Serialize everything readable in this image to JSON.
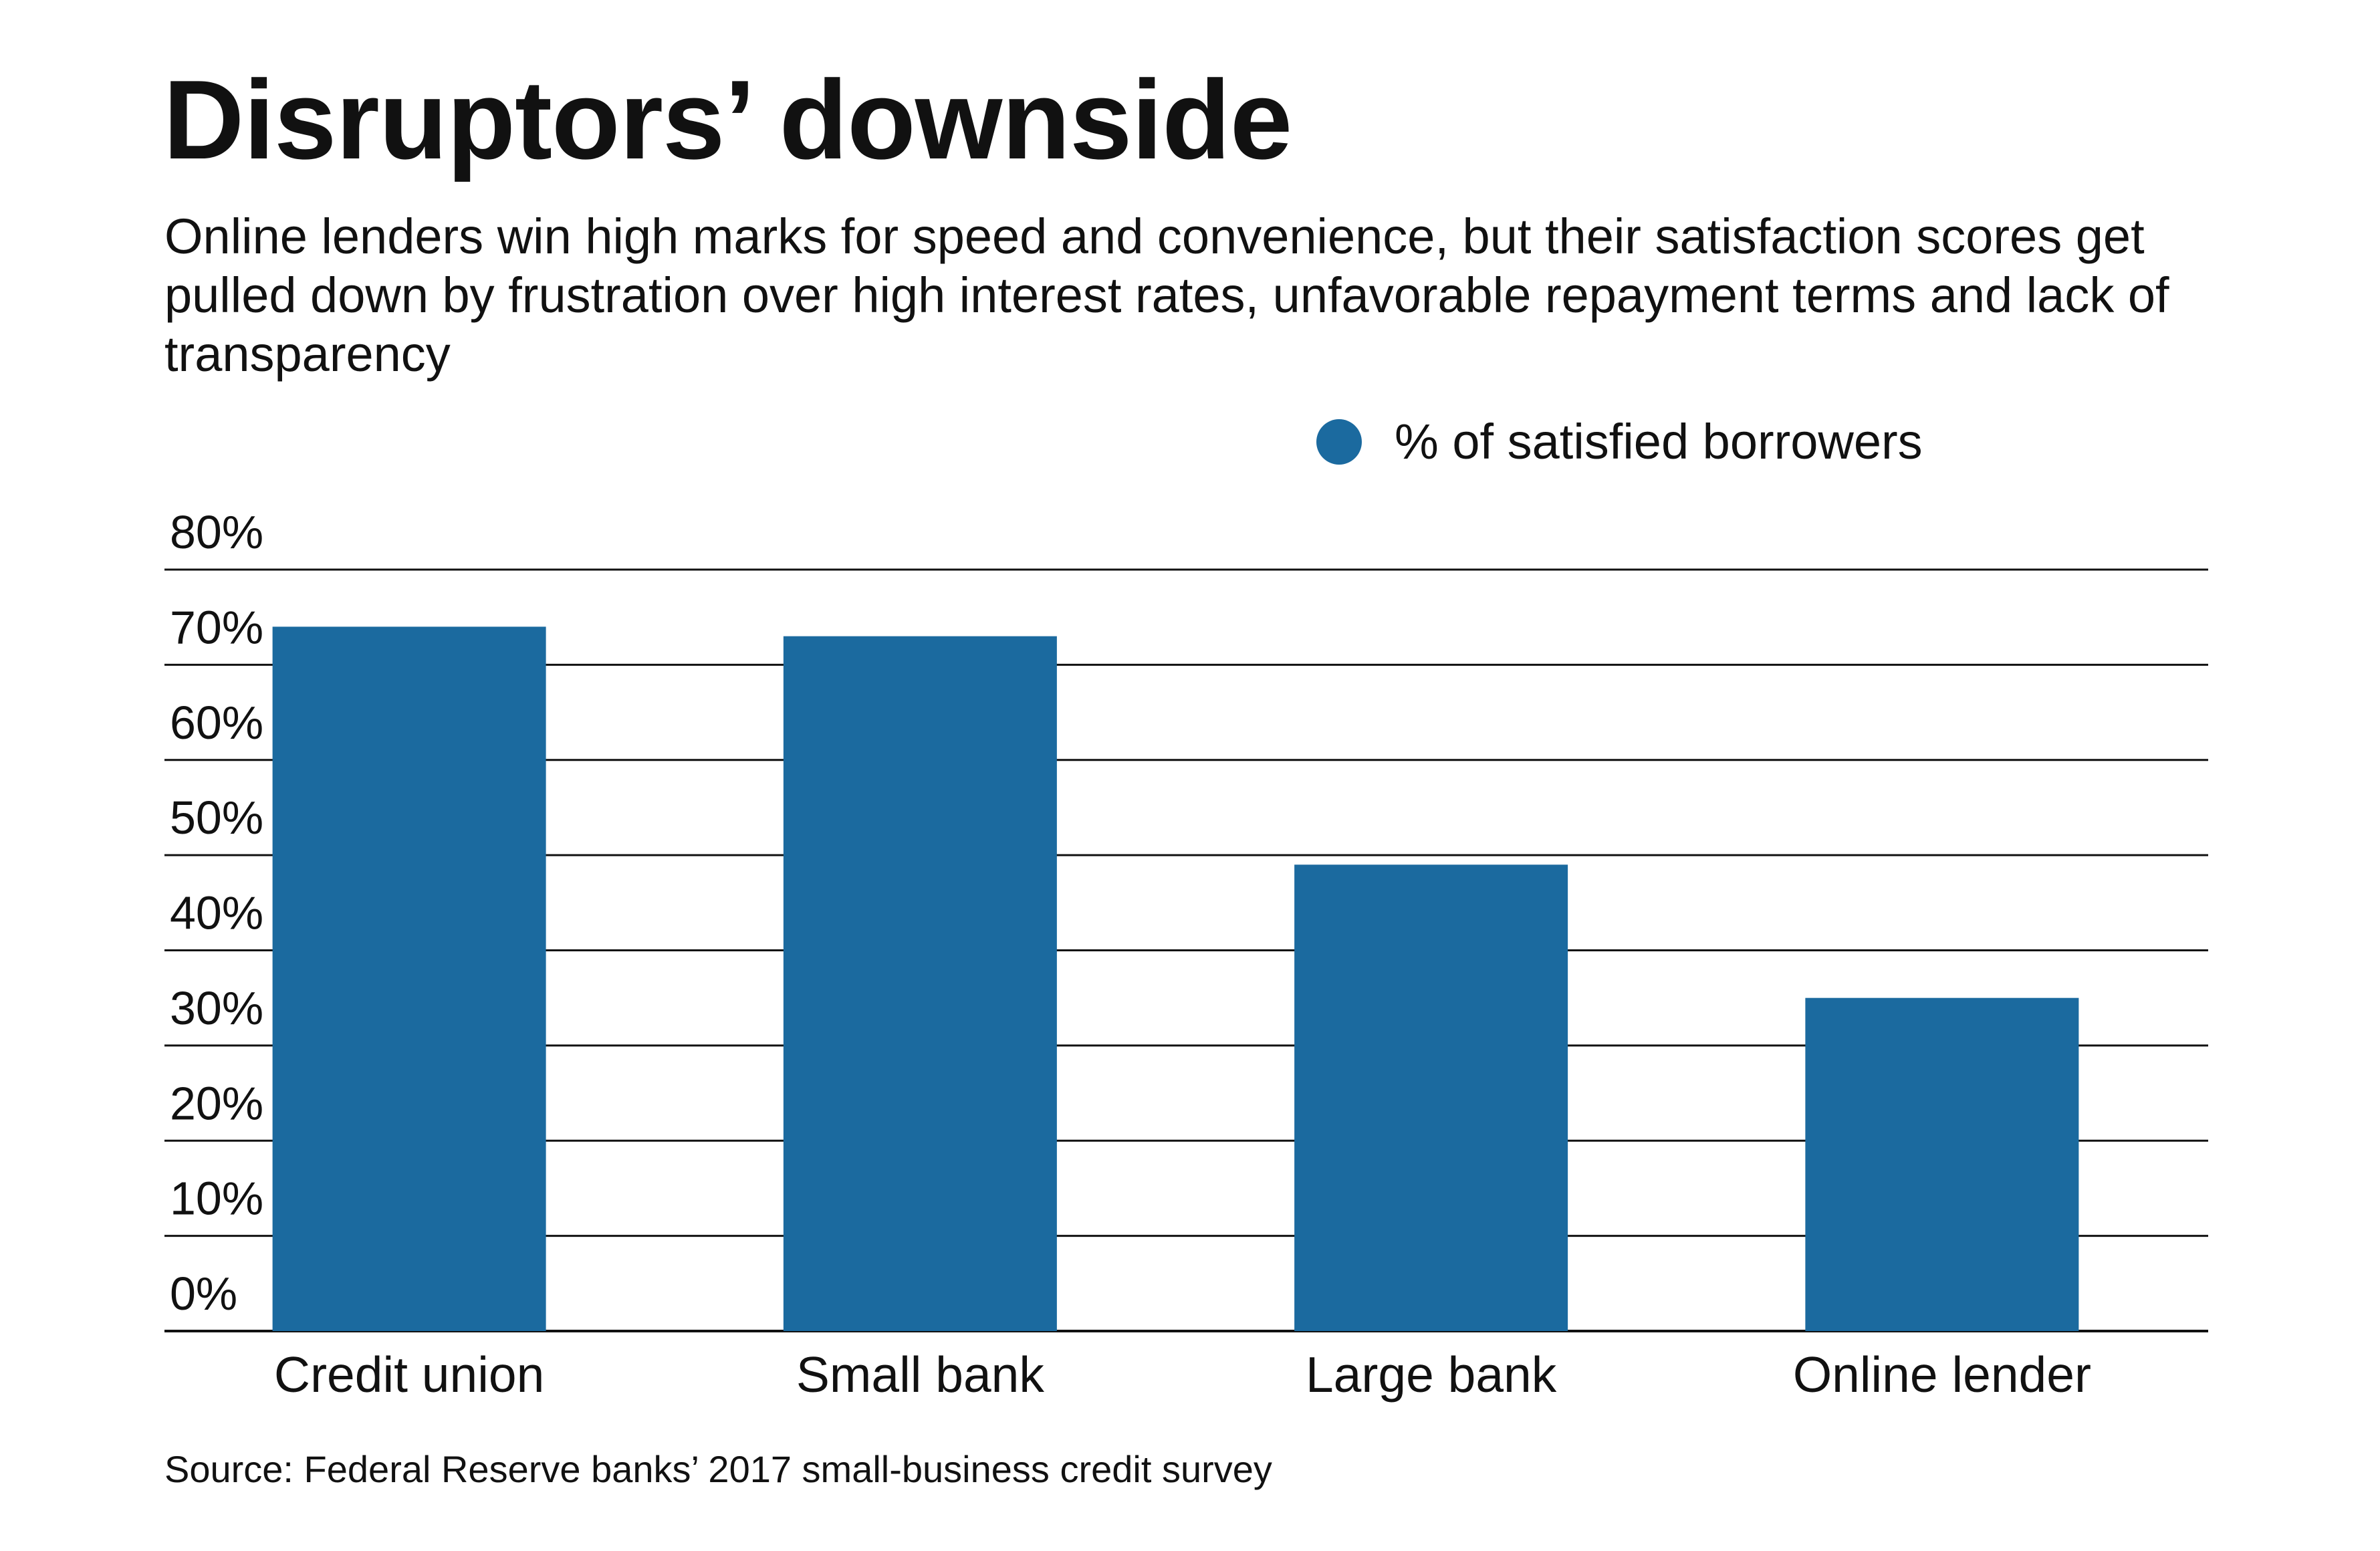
{
  "title": "Disruptors’ downside",
  "subtitle": "Online lenders win high marks for speed and convenience, but their satisfaction scores get pulled down by frustration over high interest rates, unfavorable repayment terms and lack of transparency",
  "source": "Source: Federal Reserve banks’ 2017 small-business credit survey",
  "chart_data": {
    "type": "bar",
    "title": "Disruptors’ downside",
    "xlabel": "",
    "ylabel": "",
    "categories": [
      "Credit union",
      "Small bank",
      "Large bank",
      "Online lender"
    ],
    "series": [
      {
        "name": "% of satisfied borrowers",
        "values": [
          74,
          73,
          49,
          35
        ],
        "color": "#1b6a9f"
      }
    ],
    "ylim": [
      0,
      80
    ],
    "yticks": [
      0,
      10,
      20,
      30,
      40,
      50,
      60,
      70,
      80
    ],
    "ytick_labels": [
      "0%",
      "10%",
      "20%",
      "30%",
      "40%",
      "50%",
      "60%",
      "70%",
      "80%"
    ],
    "grid": true,
    "legend_position": "top-right"
  }
}
